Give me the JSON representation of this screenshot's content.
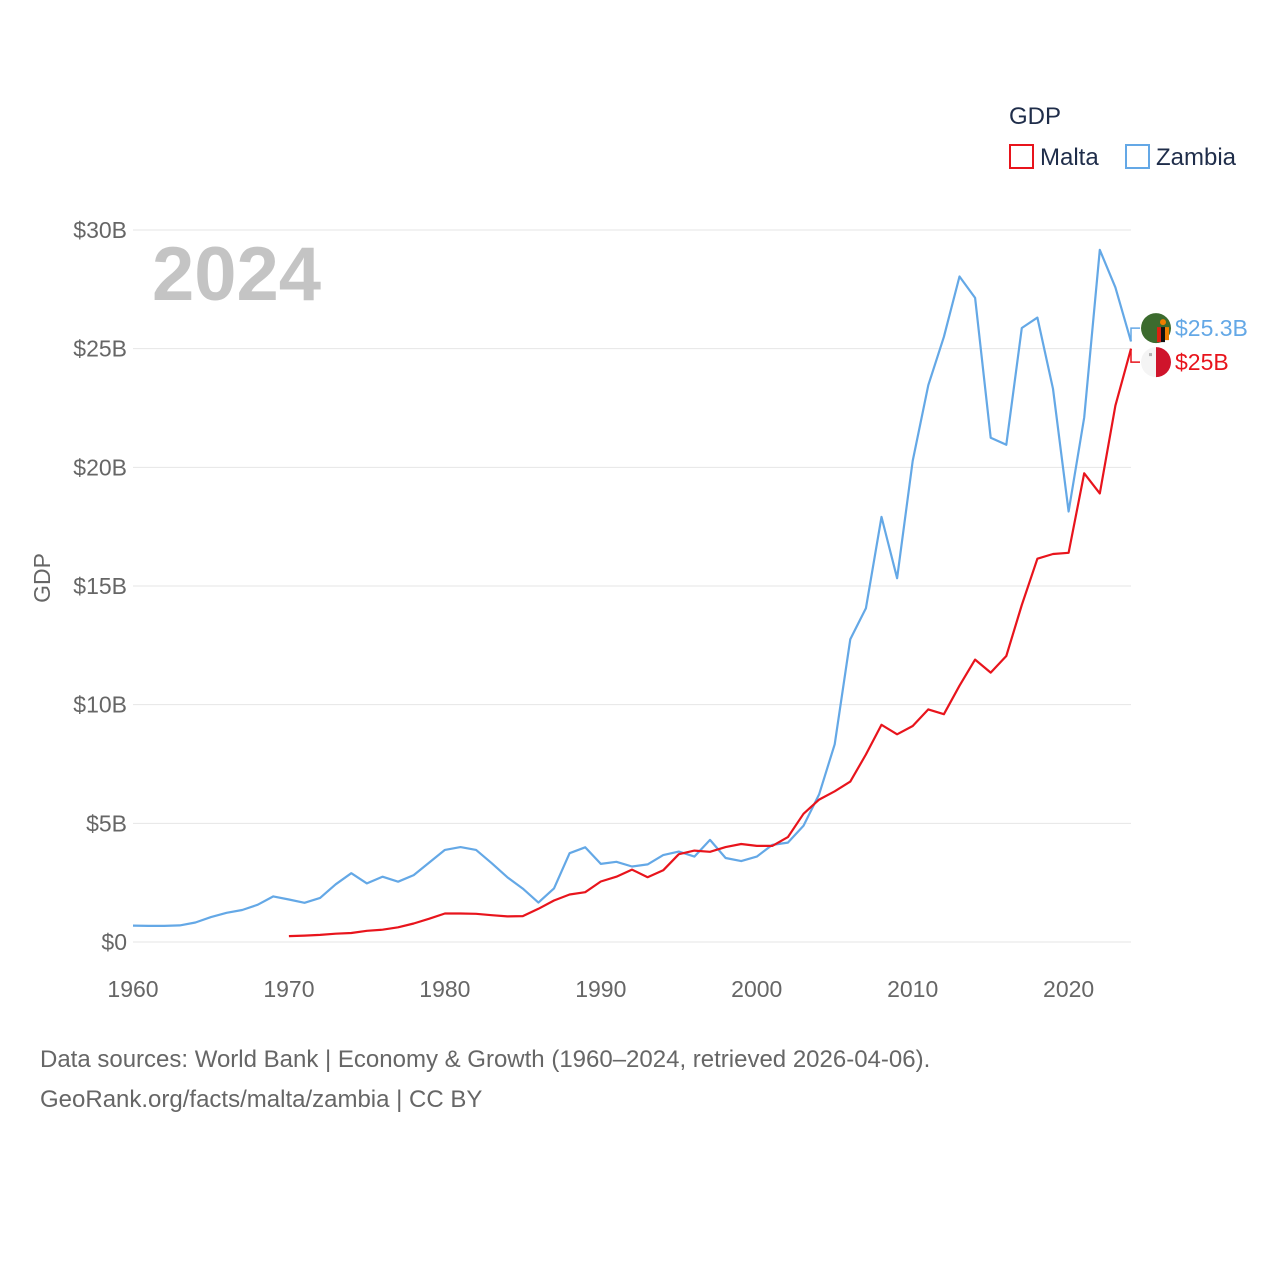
{
  "chart_data": {
    "type": "line",
    "title": "GDP",
    "year_label": "2024",
    "ylabel": "GDP",
    "xlabel": "",
    "xlim": [
      1960,
      2024
    ],
    "ylim": [
      0,
      30
    ],
    "y_unit": "billions USD",
    "x_ticks": [
      "1960",
      "1970",
      "1980",
      "1990",
      "2000",
      "2010",
      "2020"
    ],
    "y_ticks": [
      {
        "value": 0,
        "label": "$0"
      },
      {
        "value": 5,
        "label": "$5B"
      },
      {
        "value": 10,
        "label": "$10B"
      },
      {
        "value": 15,
        "label": "$15B"
      },
      {
        "value": 20,
        "label": "$20B"
      },
      {
        "value": 25,
        "label": "$25B"
      },
      {
        "value": 30,
        "label": "$30B"
      }
    ],
    "legend": {
      "title": "GDP",
      "placement": "top-right"
    },
    "series": [
      {
        "name": "Malta",
        "color": "#e8141c",
        "end_label": "$25B",
        "flag": "malta-flag",
        "x": [
          1970,
          1971,
          1972,
          1973,
          1974,
          1975,
          1976,
          1977,
          1978,
          1979,
          1980,
          1981,
          1982,
          1983,
          1984,
          1985,
          1986,
          1987,
          1988,
          1989,
          1990,
          1991,
          1992,
          1993,
          1994,
          1995,
          1996,
          1997,
          1998,
          1999,
          2000,
          2001,
          2002,
          2003,
          2004,
          2005,
          2006,
          2007,
          2008,
          2009,
          2010,
          2011,
          2012,
          2013,
          2014,
          2015,
          2016,
          2017,
          2018,
          2019,
          2020,
          2021,
          2022,
          2023,
          2024
        ],
        "values": [
          0.25,
          0.27,
          0.3,
          0.35,
          0.38,
          0.47,
          0.52,
          0.62,
          0.78,
          0.98,
          1.2,
          1.2,
          1.19,
          1.13,
          1.08,
          1.09,
          1.4,
          1.75,
          2.0,
          2.1,
          2.55,
          2.75,
          3.05,
          2.73,
          3.02,
          3.7,
          3.85,
          3.8,
          4.0,
          4.13,
          4.05,
          4.05,
          4.42,
          5.4,
          6.0,
          6.35,
          6.76,
          7.9,
          9.15,
          8.75,
          9.1,
          9.8,
          9.6,
          10.8,
          11.9,
          11.35,
          12.05,
          14.2,
          16.15,
          16.35,
          16.4,
          19.75,
          18.9,
          22.6,
          25.0
        ]
      },
      {
        "name": "Zambia",
        "color": "#64a8e6",
        "end_label": "$25.3B",
        "flag": "zambia-flag",
        "x": [
          1960,
          1961,
          1962,
          1963,
          1964,
          1965,
          1966,
          1967,
          1968,
          1969,
          1970,
          1971,
          1972,
          1973,
          1974,
          1975,
          1976,
          1977,
          1978,
          1979,
          1980,
          1981,
          1982,
          1983,
          1984,
          1985,
          1986,
          1987,
          1988,
          1989,
          1990,
          1991,
          1992,
          1993,
          1994,
          1995,
          1996,
          1997,
          1998,
          1999,
          2000,
          2001,
          2002,
          2003,
          2004,
          2005,
          2006,
          2007,
          2008,
          2009,
          2010,
          2011,
          2012,
          2013,
          2014,
          2015,
          2016,
          2017,
          2018,
          2019,
          2020,
          2021,
          2022,
          2023,
          2024
        ],
        "values": [
          0.69,
          0.68,
          0.68,
          0.7,
          0.82,
          1.05,
          1.23,
          1.35,
          1.57,
          1.92,
          1.79,
          1.65,
          1.86,
          2.43,
          2.9,
          2.47,
          2.75,
          2.54,
          2.82,
          3.35,
          3.88,
          4.0,
          3.88,
          3.32,
          2.73,
          2.25,
          1.66,
          2.26,
          3.74,
          3.99,
          3.29,
          3.38,
          3.18,
          3.27,
          3.66,
          3.81,
          3.6,
          4.3,
          3.54,
          3.41,
          3.6,
          4.09,
          4.19,
          4.9,
          6.22,
          8.33,
          12.76,
          14.06,
          17.91,
          15.33,
          20.27,
          23.46,
          25.5,
          28.04,
          27.14,
          21.25,
          20.95,
          25.87,
          26.31,
          23.31,
          18.14,
          22.1,
          29.16,
          27.58,
          25.3
        ]
      }
    ]
  },
  "footer": {
    "line1": "Data sources: World Bank | Economy & Growth (1960–2024, retrieved 2026-04-06).",
    "line2": "GeoRank.org/facts/malta/zambia | CC BY"
  }
}
